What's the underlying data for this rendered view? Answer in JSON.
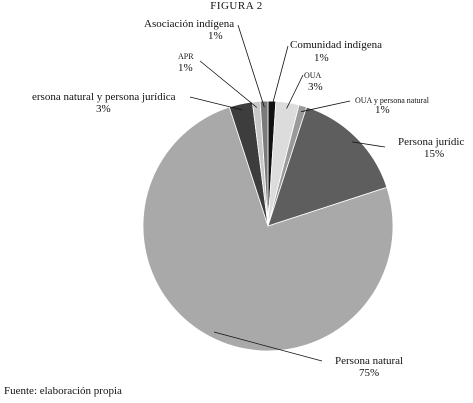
{
  "figure": {
    "title": "FIGURA 2"
  },
  "source_note": "Fuente: elaboración propia",
  "chart_data": {
    "type": "pie",
    "title": "FIGURA 2",
    "slices": [
      {
        "name": "Comunidad indígena",
        "value": 1,
        "label": "1%",
        "color": "#111111"
      },
      {
        "name": "OUA",
        "value": 3,
        "label": "3%",
        "color": "#dcdcdc"
      },
      {
        "name": "OUA y persona natural",
        "value": 1,
        "label": "1%",
        "color": "#9a9a9a"
      },
      {
        "name": "Persona jurídic",
        "value": 15,
        "label": "15%",
        "color": "#5e5e5e"
      },
      {
        "name": "Persona natural",
        "value": 75,
        "label": "75%",
        "color": "#a9a9a9"
      },
      {
        "name": "ersona natural y persona jurídica",
        "value": 3,
        "label": "3%",
        "color": "#3d3d3d"
      },
      {
        "name": "APR",
        "value": 1,
        "label": "1%",
        "color": "#c8c8c8"
      },
      {
        "name": "Asociación indígena",
        "value": 1,
        "label": "1%",
        "color": "#7a7a7a"
      }
    ]
  }
}
